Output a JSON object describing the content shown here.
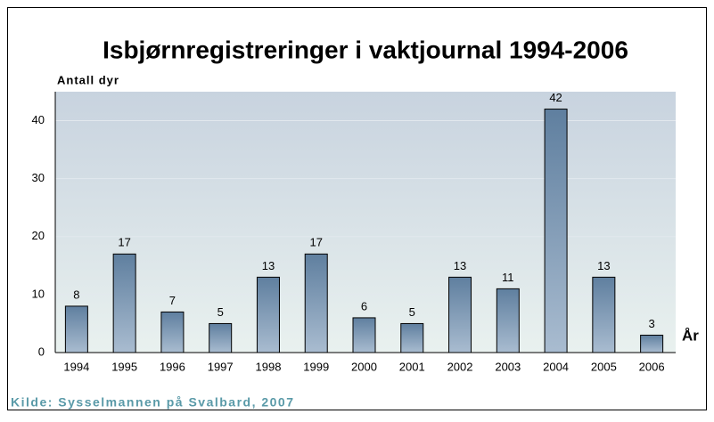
{
  "chart_data": {
    "type": "bar",
    "title": "Isbjørnregistreringer i vaktjournal 1994-2006",
    "y_label": "Antall dyr",
    "x_label": "År",
    "source": "Kilde: Sysselmannen på Svalbard, 2007",
    "categories": [
      "1994",
      "1995",
      "1996",
      "1997",
      "1998",
      "1999",
      "2000",
      "2001",
      "2002",
      "2003",
      "2004",
      "2005",
      "2006"
    ],
    "values": [
      8,
      17,
      7,
      5,
      13,
      17,
      6,
      5,
      13,
      11,
      42,
      13,
      3
    ],
    "color": "#6f8fb0",
    "ylim": [
      0,
      45
    ],
    "yticks": [
      0,
      10,
      20,
      30,
      40
    ],
    "grid": true
  }
}
